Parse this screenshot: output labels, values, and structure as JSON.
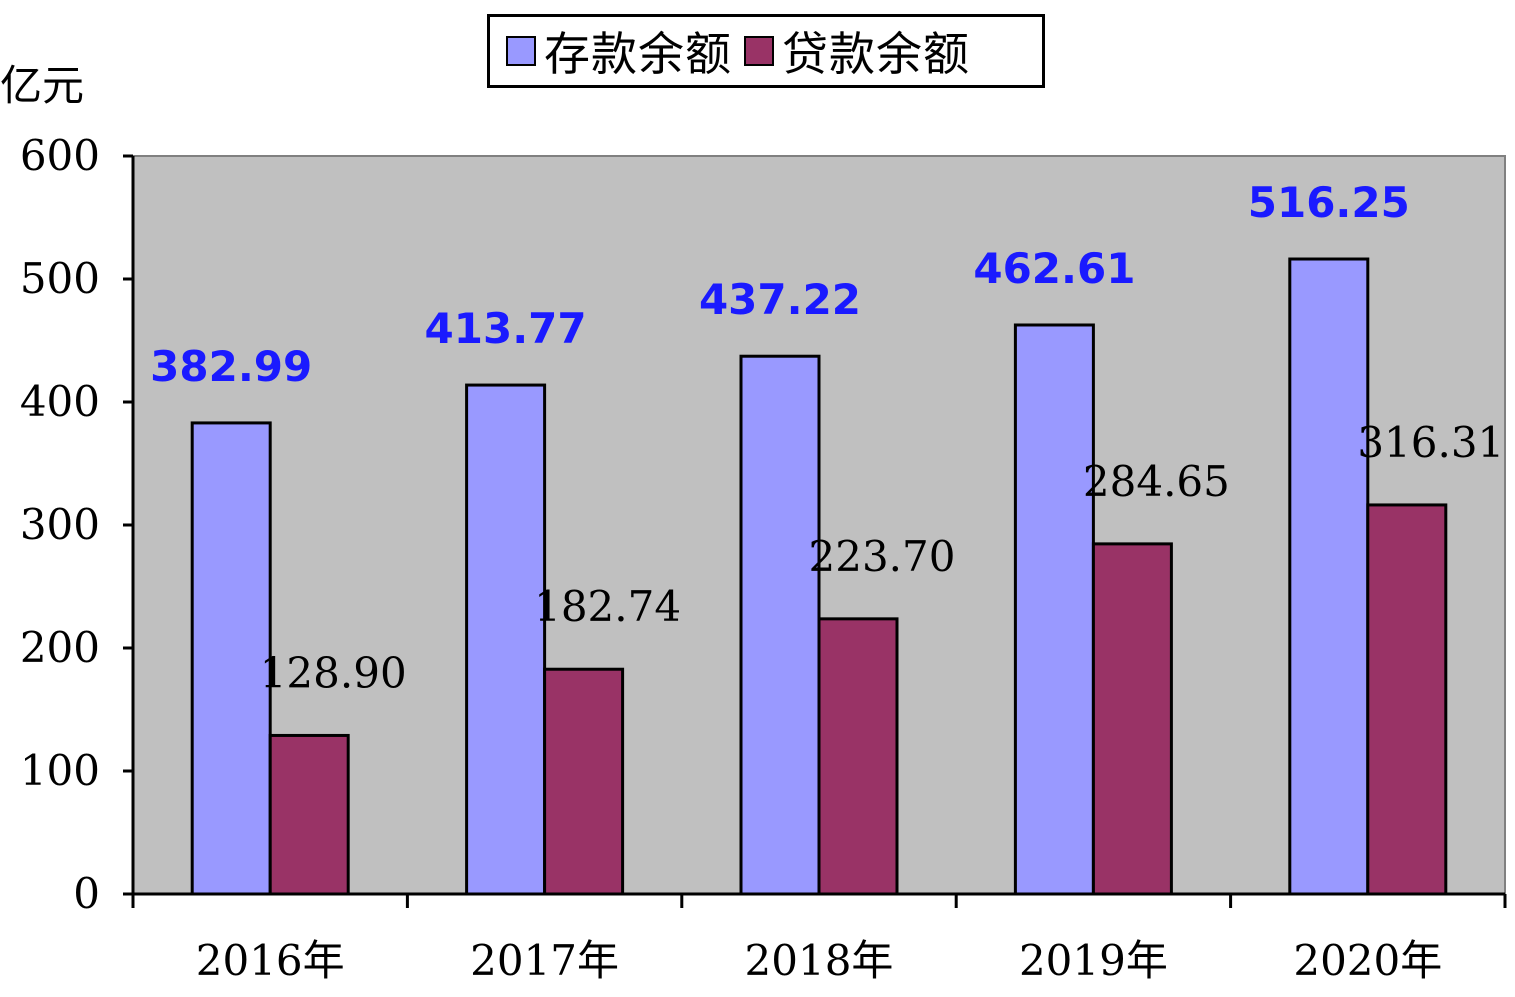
{
  "chart_data": {
    "type": "bar",
    "categories": [
      "2016年",
      "2017年",
      "2018年",
      "2019年",
      "2020年"
    ],
    "series": [
      {
        "name": "存款余额",
        "values": [
          382.99,
          413.77,
          437.22,
          462.61,
          516.25
        ],
        "labels": [
          "382.99",
          "413.77",
          "437.22",
          "462.61",
          "516.25"
        ],
        "color": "#9999ff",
        "label_color": "#1a1aff"
      },
      {
        "name": "贷款余额",
        "values": [
          128.9,
          182.74,
          223.7,
          284.65,
          316.31
        ],
        "labels": [
          "128.90",
          "182.74",
          "223.70",
          "284.65",
          "316.31"
        ],
        "color": "#993366",
        "label_color": "#000000"
      }
    ],
    "ylabel": "亿元",
    "ylim": [
      0,
      600
    ],
    "yticks": [
      0,
      100,
      200,
      300,
      400,
      500,
      600
    ],
    "grid": false,
    "plot_background": "#c0c0c0",
    "legend_position": "top-center"
  }
}
